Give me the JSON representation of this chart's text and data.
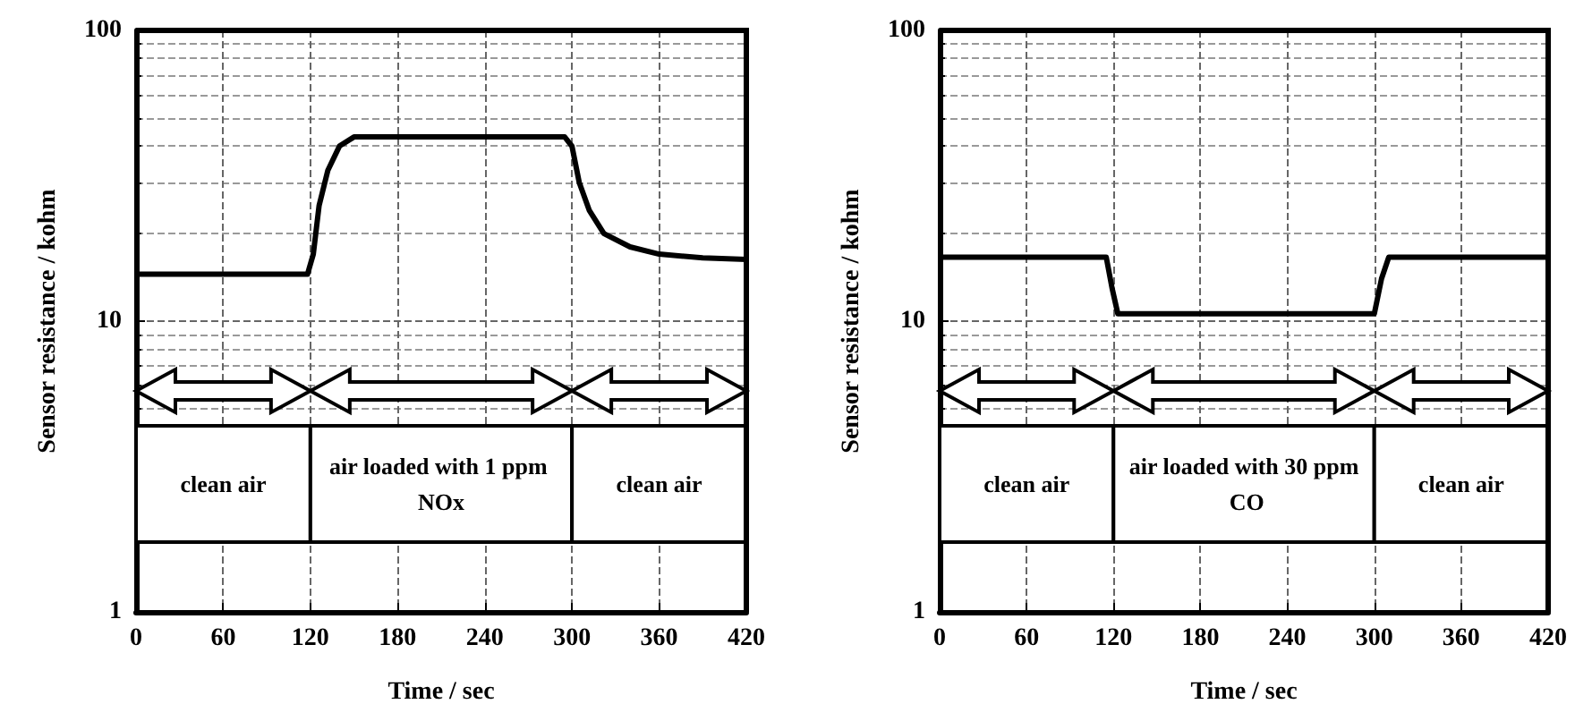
{
  "chart_data": [
    {
      "type": "line",
      "xlabel": "Time / sec",
      "ylabel": "Sensor resistance / kohm",
      "log": "y",
      "grid": true,
      "marker": "none",
      "line_style": "solid",
      "xlim": [
        0,
        420
      ],
      "xticks": [
        0,
        60,
        120,
        180,
        240,
        300,
        360,
        420
      ],
      "ylim": [
        1,
        100
      ],
      "yticks": [
        1,
        10,
        100
      ],
      "series": [
        {
          "color": "#000000",
          "x": [
            0,
            118,
            122,
            126,
            132,
            140,
            150,
            295,
            300,
            305,
            312,
            322,
            340,
            360,
            390,
            420
          ],
          "values": [
            14.5,
            14.5,
            17,
            25,
            33,
            40,
            43,
            43,
            40,
            30,
            24,
            20,
            18,
            17,
            16.5,
            16.3
          ]
        }
      ],
      "bands": [
        {
          "axis": "x",
          "from": 0,
          "to": 120,
          "label": "clean air"
        },
        {
          "axis": "x",
          "from": 120,
          "to": 300,
          "label": "air loaded with 1 ppm NOx"
        },
        {
          "axis": "x",
          "from": 300,
          "to": 420,
          "label": "clean air"
        }
      ]
    },
    {
      "type": "line",
      "xlabel": "Time / sec",
      "ylabel": "Sensor resistance / kohm",
      "log": "y",
      "grid": true,
      "marker": "none",
      "line_style": "solid",
      "xlim": [
        0,
        420
      ],
      "xticks": [
        0,
        60,
        120,
        180,
        240,
        300,
        360,
        420
      ],
      "ylim": [
        1,
        100
      ],
      "yticks": [
        1,
        10,
        100
      ],
      "series": [
        {
          "color": "#000000",
          "x": [
            0,
            115,
            119,
            123,
            300,
            305,
            310,
            420
          ],
          "values": [
            16.6,
            16.6,
            13,
            10.6,
            10.6,
            14,
            16.6,
            16.6
          ]
        }
      ],
      "bands": [
        {
          "axis": "x",
          "from": 0,
          "to": 120,
          "label": "clean air"
        },
        {
          "axis": "x",
          "from": 120,
          "to": 300,
          "label": "air loaded with 30 ppm CO"
        },
        {
          "axis": "x",
          "from": 300,
          "to": 420,
          "label": "clean air"
        }
      ]
    }
  ]
}
